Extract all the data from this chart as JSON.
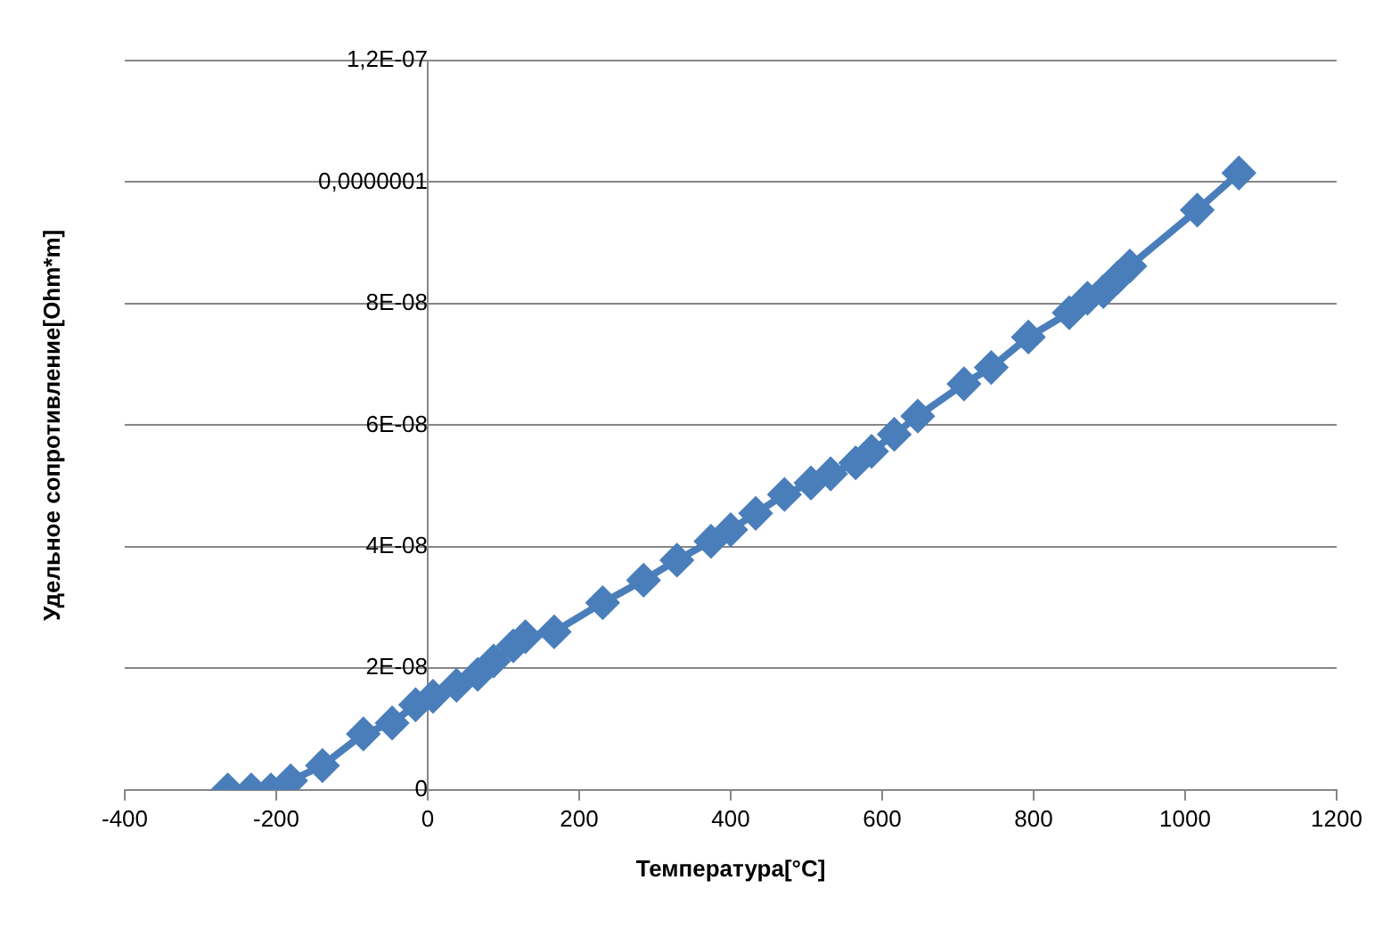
{
  "chart_data": {
    "type": "line",
    "xlabel": "Температура[°C]",
    "ylabel": "Удельное сопротивление[Ohm*m]",
    "xlim": [
      -400,
      1200
    ],
    "xticks": [
      -400,
      -200,
      0,
      200,
      400,
      600,
      800,
      1000,
      1200
    ],
    "ylim": [
      0,
      1.2e-07
    ],
    "yticks": [
      0,
      {
        "value": 2e-08,
        "label": "2E-08"
      },
      {
        "value": 4e-08,
        "label": "4E-08"
      },
      {
        "value": 6e-08,
        "label": "6E-08"
      },
      {
        "value": 8e-08,
        "label": "8E-08"
      },
      {
        "value": 1e-07,
        "label": "0,0000001"
      },
      {
        "value": 1.2e-07,
        "label": "1,2E-07"
      }
    ],
    "grid": "y",
    "legend": false,
    "marker": "diamond",
    "line_style": "solid",
    "series": [
      {
        "color": "#4a7ebb",
        "x": [
          -264,
          -233,
          -207,
          -181,
          -139,
          -85,
          -47,
          -16,
          7,
          38,
          66,
          87,
          113,
          129,
          167,
          231,
          285,
          329,
          374,
          400,
          433,
          471,
          506,
          532,
          565,
          586,
          616,
          647,
          708,
          744,
          793,
          847,
          871,
          892,
          911,
          927,
          1016,
          1071
        ],
        "values": [
          0,
          0,
          0,
          1.5e-09,
          4e-09,
          9.2e-09,
          1.1e-08,
          1.4e-08,
          1.54e-08,
          1.72e-08,
          1.9e-08,
          2.12e-08,
          2.37e-08,
          2.52e-08,
          2.6e-08,
          3.08e-08,
          3.45e-08,
          3.78e-08,
          4.09e-08,
          4.28e-08,
          4.55e-08,
          4.86e-08,
          5.05e-08,
          5.2e-08,
          5.38e-08,
          5.57e-08,
          5.85e-08,
          6.15e-08,
          6.68e-08,
          6.95e-08,
          7.45e-08,
          7.85e-08,
          8.09e-08,
          8.2e-08,
          8.43e-08,
          8.62e-08,
          9.54e-08,
          1.015e-07
        ]
      }
    ]
  }
}
